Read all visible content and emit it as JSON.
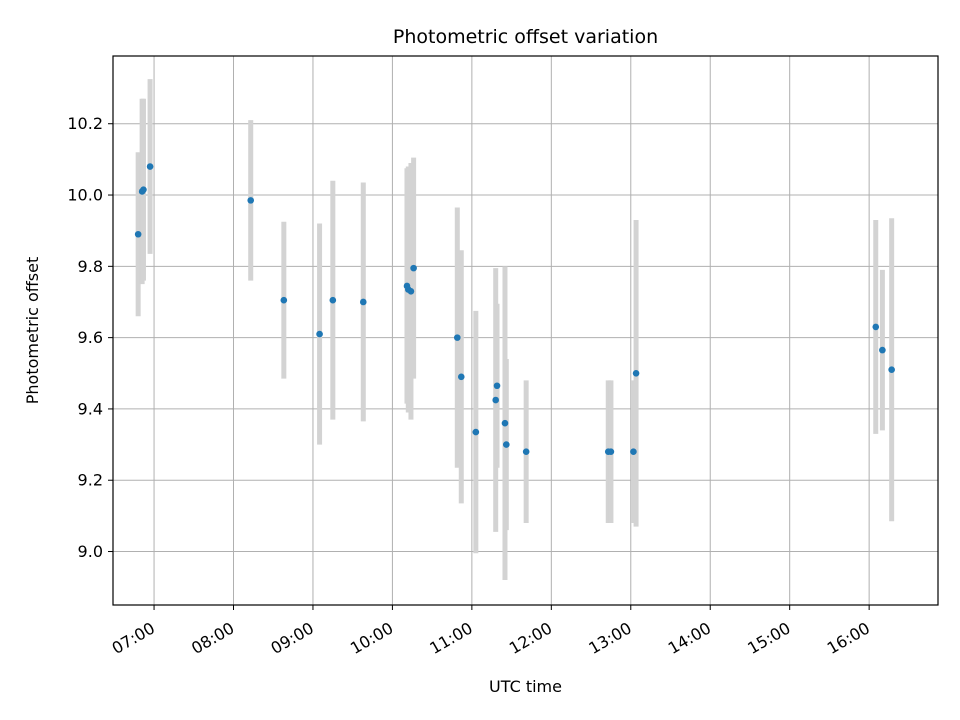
{
  "chart_data": {
    "type": "scatter",
    "title": "Photometric offset variation",
    "xlabel": "UTC time",
    "ylabel": "Photometric offset",
    "x_unit": "UTC time (HH:MM)",
    "xlim": [
      "06:29",
      "16:52"
    ],
    "ylim": [
      8.85,
      10.39
    ],
    "x_ticks": [
      "07:00",
      "08:00",
      "09:00",
      "10:00",
      "11:00",
      "12:00",
      "13:00",
      "14:00",
      "15:00",
      "16:00"
    ],
    "y_ticks": [
      9.0,
      9.2,
      9.4,
      9.6,
      9.8,
      10.0,
      10.2
    ],
    "y_tick_labels": [
      "9.0",
      "9.2",
      "9.4",
      "9.6",
      "9.8",
      "10.0",
      "10.2"
    ],
    "grid": true,
    "marker_color": "#1f77b4",
    "errorbar_color": "#d3d3d3",
    "points": [
      {
        "time": "06:48",
        "y": 9.89,
        "err": 0.23
      },
      {
        "time": "06:51",
        "y": 10.01,
        "err": 0.26
      },
      {
        "time": "06:52",
        "y": 10.015,
        "err": 0.255
      },
      {
        "time": "06:57",
        "y": 10.08,
        "err": 0.245
      },
      {
        "time": "08:13",
        "y": 9.985,
        "err": 0.225
      },
      {
        "time": "08:38",
        "y": 9.705,
        "err": 0.22
      },
      {
        "time": "09:05",
        "y": 9.61,
        "err": 0.31
      },
      {
        "time": "09:15",
        "y": 9.705,
        "err": 0.335
      },
      {
        "time": "09:38",
        "y": 9.7,
        "err": 0.335
      },
      {
        "time": "10:11",
        "y": 9.745,
        "err": 0.33
      },
      {
        "time": "10:12",
        "y": 9.735,
        "err": 0.345
      },
      {
        "time": "10:14",
        "y": 9.73,
        "err": 0.36
      },
      {
        "time": "10:16",
        "y": 9.795,
        "err": 0.31
      },
      {
        "time": "10:49",
        "y": 9.6,
        "err": 0.365
      },
      {
        "time": "10:52",
        "y": 9.49,
        "err": 0.355
      },
      {
        "time": "11:03",
        "y": 9.335,
        "err": 0.34
      },
      {
        "time": "11:18",
        "y": 9.425,
        "err": 0.37
      },
      {
        "time": "11:19",
        "y": 9.465,
        "err": 0.23
      },
      {
        "time": "11:25",
        "y": 9.36,
        "err": 0.44
      },
      {
        "time": "11:26",
        "y": 9.3,
        "err": 0.24
      },
      {
        "time": "11:41",
        "y": 9.28,
        "err": 0.2
      },
      {
        "time": "12:43",
        "y": 9.28,
        "err": 0.2
      },
      {
        "time": "12:45",
        "y": 9.28,
        "err": 0.2
      },
      {
        "time": "13:02",
        "y": 9.28,
        "err": 0.2
      },
      {
        "time": "13:04",
        "y": 9.5,
        "err": 0.43
      },
      {
        "time": "16:05",
        "y": 9.63,
        "err": 0.3
      },
      {
        "time": "16:10",
        "y": 9.565,
        "err": 0.225
      },
      {
        "time": "16:17",
        "y": 9.51,
        "err": 0.425
      }
    ]
  }
}
